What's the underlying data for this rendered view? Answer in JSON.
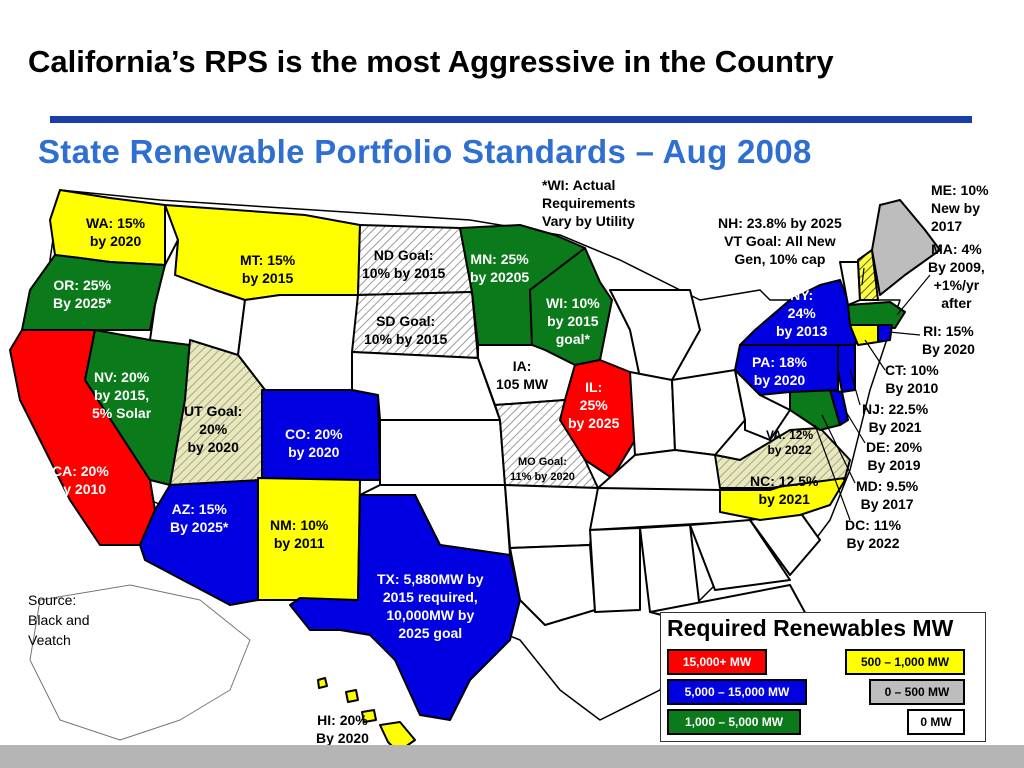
{
  "slide": {
    "title": "California’s RPS is the most Aggressive in the Country",
    "map_title": "State Renewable Portfolio Standards – Aug 2008",
    "source": "Source:\nBlack and\nVeatch"
  },
  "colors": {
    "rule": "#1a3ea8",
    "map_title": "#2e6fd1",
    "tier_15000_plus": "#ff0000",
    "tier_5000_15000": "#0000e0",
    "tier_1000_5000": "#0a7a1a",
    "tier_500_1000": "#ffff00",
    "tier_0_500": "#bdbdbd",
    "tier_0": "#ffffff",
    "hatched_goal": "#d6d6a0"
  },
  "states": {
    "wa": "WA: 15%\nby 2020",
    "or": "OR: 25%\nBy 2025*",
    "ca": "CA: 20%\nby 2010",
    "nv": "NV: 20%\nby 2015,\n5% Solar",
    "mt": "MT: 15%\nby 2015",
    "ut": "UT Goal:\n20%\nby 2020",
    "az": "AZ: 15%\nBy 2025*",
    "co": "CO: 20%\nby 2020",
    "nm": "NM: 10%\nby 2011",
    "tx": "TX: 5,880MW by\n2015 required,\n10,000MW by\n2025 goal",
    "nd": "ND Goal:\n10% by 2015",
    "sd": "SD Goal:\n10% by 2015",
    "mn": "MN: 25%\nby 20205",
    "wi": "WI: 10%\nby 2015\ngoal*",
    "ia": "IA:\n105 MW",
    "il": "IL:\n25%\nby 2025",
    "mo": "MO Goal:\n11% by 2020",
    "ny": "NY:\n24%\nby 2013",
    "pa": "PA: 18%\nby 2020",
    "va": "VA: 12%\nby 2022",
    "nc": "NC: 12.5%\nby 2021",
    "hi": "HI: 20%\nBy 2020"
  },
  "notes": {
    "wi_actual": "*WI: Actual\nRequirements\nVary by Utility",
    "nh_vt": "NH: 23.8% by 2025\nVT Goal: All New\nGen, 10% cap",
    "me": "ME: 10%\nNew by\n2017",
    "ma": "MA: 4%\nBy 2009,\n+1%/yr\nafter",
    "ri": "RI: 15%\nBy 2020",
    "ct": "CT: 10%\nBy 2010",
    "nj": "NJ: 22.5%\nBy 2021",
    "de": "DE: 20%\nBy 2019",
    "md": "MD: 9.5%\nBy 2017",
    "dc": "DC: 11%\nBy 2022"
  },
  "legend": {
    "title": "Required Renewables MW",
    "items": [
      {
        "label": "15,000+ MW",
        "color": "#ff0000"
      },
      {
        "label": "500 – 1,000 MW",
        "color": "#ffff00"
      },
      {
        "label": "5,000 – 15,000 MW",
        "color": "#0000e0"
      },
      {
        "label": "0 – 500 MW",
        "color": "#bdbdbd"
      },
      {
        "label": "1,000 – 5,000 MW",
        "color": "#0a7a1a"
      },
      {
        "label": "0 MW",
        "color": "#ffffff"
      }
    ]
  }
}
